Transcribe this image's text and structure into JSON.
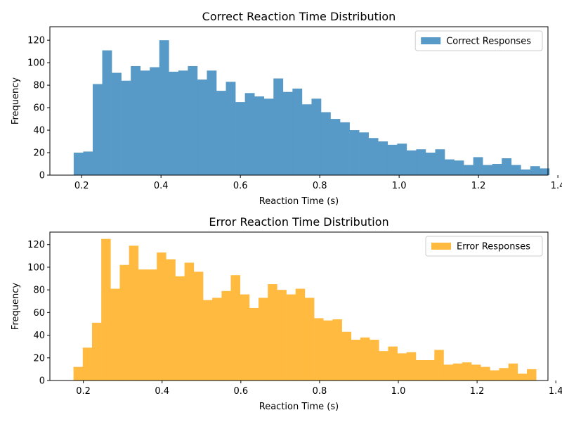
{
  "chart_data": [
    {
      "type": "bar",
      "title": "Correct Reaction Time Distribution",
      "xlabel": "Reaction Time (s)",
      "ylabel": "Frequency",
      "xlim": [
        0.12,
        1.375
      ],
      "ylim": [
        0,
        132
      ],
      "xticks": [
        0.2,
        0.4,
        0.6,
        0.8,
        1.0,
        1.2,
        1.4
      ],
      "xtick_labels": [
        "0.2",
        "0.4",
        "0.6",
        "0.8",
        "1.0",
        "1.2",
        "1.4"
      ],
      "yticks": [
        0,
        20,
        40,
        60,
        80,
        100,
        120
      ],
      "ytick_labels": [
        "0",
        "20",
        "40",
        "60",
        "80",
        "100",
        "120"
      ],
      "bin_start": 0.18,
      "bin_width": 0.02397,
      "legend_position": "upper right",
      "grid": false,
      "series": [
        {
          "name": "Correct Responses",
          "color": "#5799c7",
          "values": [
            20,
            21,
            81,
            111,
            91,
            84,
            97,
            93,
            96,
            120,
            92,
            93,
            97,
            85,
            93,
            75,
            83,
            65,
            73,
            70,
            68,
            86,
            74,
            77,
            63,
            68,
            56,
            50,
            47,
            40,
            38,
            33,
            30,
            27,
            28,
            22,
            23,
            20,
            23,
            14,
            13,
            9,
            16,
            9,
            10,
            15,
            9,
            5,
            8,
            6
          ]
        }
      ]
    },
    {
      "type": "bar",
      "title": "Error Reaction Time Distribution",
      "xlabel": "Reaction Time (s)",
      "ylabel": "Frequency",
      "xlim": [
        0.115,
        1.38
      ],
      "ylim": [
        0,
        131
      ],
      "xticks": [
        0.2,
        0.4,
        0.6,
        0.8,
        1.0,
        1.2,
        1.4
      ],
      "xtick_labels": [
        "0.2",
        "0.4",
        "0.6",
        "0.8",
        "1.0",
        "1.2",
        "1.4"
      ],
      "yticks": [
        0,
        20,
        40,
        60,
        80,
        100,
        120
      ],
      "ytick_labels": [
        "0",
        "20",
        "40",
        "60",
        "80",
        "100",
        "120"
      ],
      "bin_start": 0.175,
      "bin_width": 0.0235,
      "legend_position": "upper right",
      "grid": false,
      "series": [
        {
          "name": "Error Responses",
          "color": "#ffba3f",
          "values": [
            12,
            29,
            51,
            125,
            81,
            102,
            119,
            98,
            98,
            113,
            107,
            92,
            104,
            96,
            71,
            73,
            79,
            93,
            76,
            64,
            73,
            85,
            80,
            76,
            81,
            73,
            55,
            53,
            54,
            43,
            36,
            38,
            36,
            26,
            30,
            24,
            25,
            18,
            18,
            27,
            14,
            15,
            16,
            14,
            12,
            9,
            11,
            15,
            6,
            10
          ]
        }
      ]
    }
  ]
}
